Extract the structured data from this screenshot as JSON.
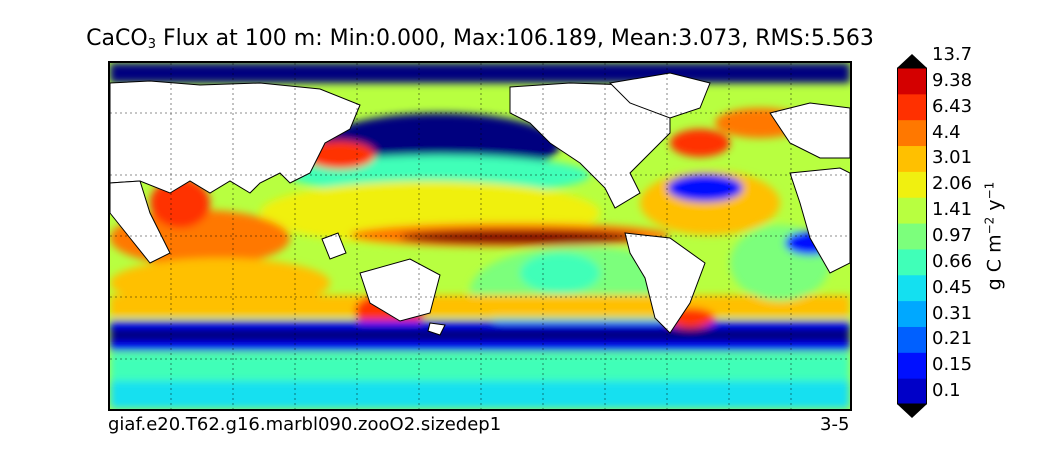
{
  "title": {
    "prefix": "CaCO",
    "subscript": "3",
    "text": " Flux at 100 m: Min:0.000, Max:106.189, Mean:3.073, RMS:5.563"
  },
  "footer": {
    "case_name": "giaf.e20.T62.g16.marbl090.zooO2.sizedep1",
    "years": "3-5"
  },
  "colorbar": {
    "label_base": "g C m",
    "label_exp1": "−2",
    "label_mid": " y",
    "label_exp2": "−1",
    "ticks": [
      "0.1",
      "0.15",
      "0.21",
      "0.31",
      "0.45",
      "0.66",
      "0.97",
      "1.41",
      "2.06",
      "3.01",
      "4.4",
      "6.43",
      "9.38",
      "13.7"
    ],
    "colors": [
      "#00007f",
      "#0000c8",
      "#0010ff",
      "#0060ff",
      "#00a8ff",
      "#14e0f0",
      "#40ffb8",
      "#7cff7c",
      "#b8ff40",
      "#f0f010",
      "#ffc000",
      "#ff7800",
      "#ff3000",
      "#d40000",
      "#800000"
    ]
  },
  "chart_data": {
    "type": "heatmap",
    "title": "CaCO3 Flux at 100 m: Min:0.000, Max:106.189, Mean:3.073, RMS:5.563",
    "variable": "CaCO3 Flux at 100 m",
    "units": "g C m^-2 y^-1",
    "stats": {
      "min": 0.0,
      "max": 106.189,
      "mean": 3.073,
      "rms": 5.563
    },
    "levels": [
      0.1,
      0.15,
      0.21,
      0.31,
      0.45,
      0.66,
      0.97,
      1.41,
      2.06,
      3.01,
      4.4,
      6.43,
      9.38,
      13.7
    ],
    "colorbar_extend": "both",
    "projection": "global map, Pacific-centered",
    "grid": true,
    "land_color": "#ffffff"
  }
}
